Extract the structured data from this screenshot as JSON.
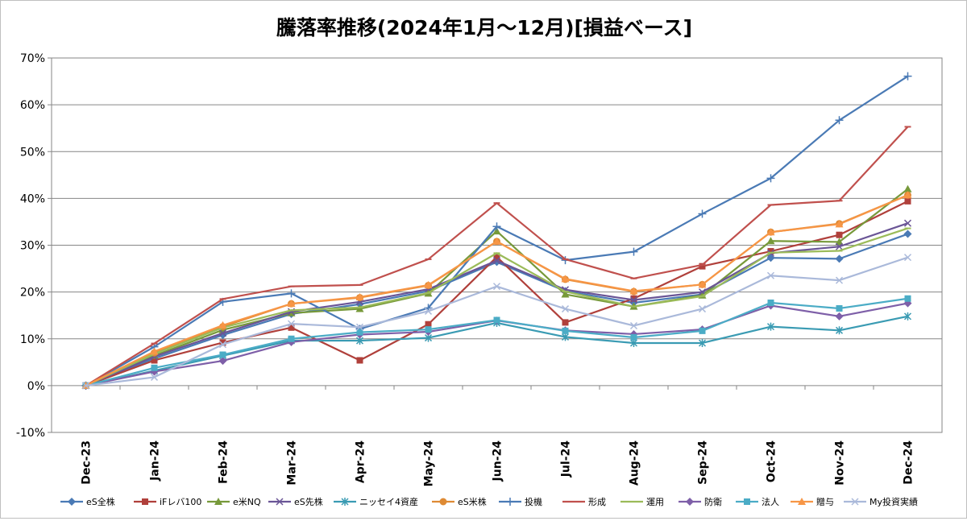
{
  "chart_data": {
    "type": "line",
    "title": "騰落率推移(2024年1月～12月)[損益ベース]",
    "xlabel": "",
    "ylabel": "",
    "categories": [
      "Dec-23",
      "Jan-24",
      "Feb-24",
      "Mar-24",
      "Apr-24",
      "May-24",
      "Jun-24",
      "Jul-24",
      "Aug-24",
      "Sep-24",
      "Oct-24",
      "Nov-24",
      "Dec-24"
    ],
    "ylim": [
      -10,
      70
    ],
    "yticks": [
      -10,
      0,
      10,
      20,
      30,
      40,
      50,
      60,
      70
    ],
    "ytick_labels": [
      "-10%",
      "0%",
      "10%",
      "20%",
      "30%",
      "40%",
      "50%",
      "60%",
      "70%"
    ],
    "grid": true,
    "legend_position": "bottom",
    "series": [
      {
        "name": "eS全株",
        "color": "#4a7ab5",
        "marker": "diamond",
        "values": [
          0,
          5.8,
          10.8,
          15.3,
          17.4,
          20.2,
          26.4,
          20.2,
          17.7,
          19.5,
          27.3,
          27.1,
          32.4
        ]
      },
      {
        "name": "iFレバ100",
        "color": "#b0403b",
        "marker": "square",
        "values": [
          0,
          5.4,
          9.2,
          12.4,
          5.4,
          13.1,
          27.5,
          13.5,
          18.6,
          25.5,
          28.7,
          32.2,
          39.4
        ]
      },
      {
        "name": "e米NQ",
        "color": "#77993a",
        "marker": "triangle",
        "values": [
          0,
          6.4,
          11.9,
          15.5,
          16.4,
          19.7,
          33.0,
          19.5,
          16.9,
          19.3,
          30.9,
          30.7,
          42.0
        ]
      },
      {
        "name": "eS先株",
        "color": "#6a5596",
        "marker": "x",
        "values": [
          0,
          6.2,
          11.2,
          15.8,
          17.9,
          20.6,
          26.7,
          20.5,
          18.3,
          20.0,
          28.3,
          29.7,
          34.7
        ]
      },
      {
        "name": "ニッセイ4資産",
        "color": "#3a9bb3",
        "marker": "star",
        "values": [
          0,
          3.2,
          6.4,
          9.6,
          9.6,
          10.2,
          13.4,
          10.4,
          9.1,
          9.1,
          12.6,
          11.8,
          14.8
        ]
      },
      {
        "name": "eS米株",
        "color": "#de8a34",
        "marker": "circle",
        "values": [
          0,
          7.0,
          12.6,
          17.5,
          18.8,
          21.4,
          30.8,
          22.7,
          20.1,
          21.6,
          32.8,
          34.6,
          40.7
        ]
      },
      {
        "name": "投機",
        "color": "#4a7ab5",
        "marker": "plus",
        "values": [
          0,
          8.3,
          17.9,
          19.7,
          12.1,
          16.6,
          34.0,
          26.8,
          28.6,
          36.7,
          44.3,
          56.7,
          66.1
        ]
      },
      {
        "name": "形成",
        "color": "#c0504d",
        "marker": "dash",
        "values": [
          0,
          9.0,
          18.5,
          21.2,
          21.5,
          27.0,
          39.0,
          27.0,
          22.9,
          25.8,
          38.6,
          39.5,
          55.3
        ]
      },
      {
        "name": "運用",
        "color": "#9bbb59",
        "marker": "dash",
        "values": [
          0,
          6.8,
          12.4,
          16.1,
          16.7,
          19.8,
          28.3,
          20.1,
          16.9,
          19.1,
          28.4,
          28.8,
          33.6
        ]
      },
      {
        "name": "防衛",
        "color": "#7e5fa8",
        "marker": "diamond",
        "values": [
          0,
          3.0,
          5.3,
          9.3,
          10.9,
          11.5,
          13.9,
          11.8,
          11.0,
          12.0,
          17.1,
          14.8,
          17.6
        ]
      },
      {
        "name": "法人",
        "color": "#4bacc6",
        "marker": "square",
        "values": [
          0,
          3.8,
          6.6,
          10.0,
          11.4,
          12.0,
          14.0,
          11.7,
          10.3,
          11.7,
          17.7,
          16.5,
          18.6
        ]
      },
      {
        "name": "贈与",
        "color": "#f79646",
        "marker": "triangle",
        "values": [
          0,
          7.3,
          12.9,
          17.5,
          18.9,
          21.5,
          30.8,
          22.8,
          20.2,
          21.6,
          32.8,
          34.5,
          40.7
        ]
      },
      {
        "name": "My投資実績",
        "color": "#aab9da",
        "marker": "x",
        "values": [
          0,
          1.8,
          8.8,
          13.2,
          12.5,
          15.9,
          21.2,
          16.4,
          12.8,
          16.4,
          23.5,
          22.5,
          27.4
        ]
      }
    ]
  }
}
